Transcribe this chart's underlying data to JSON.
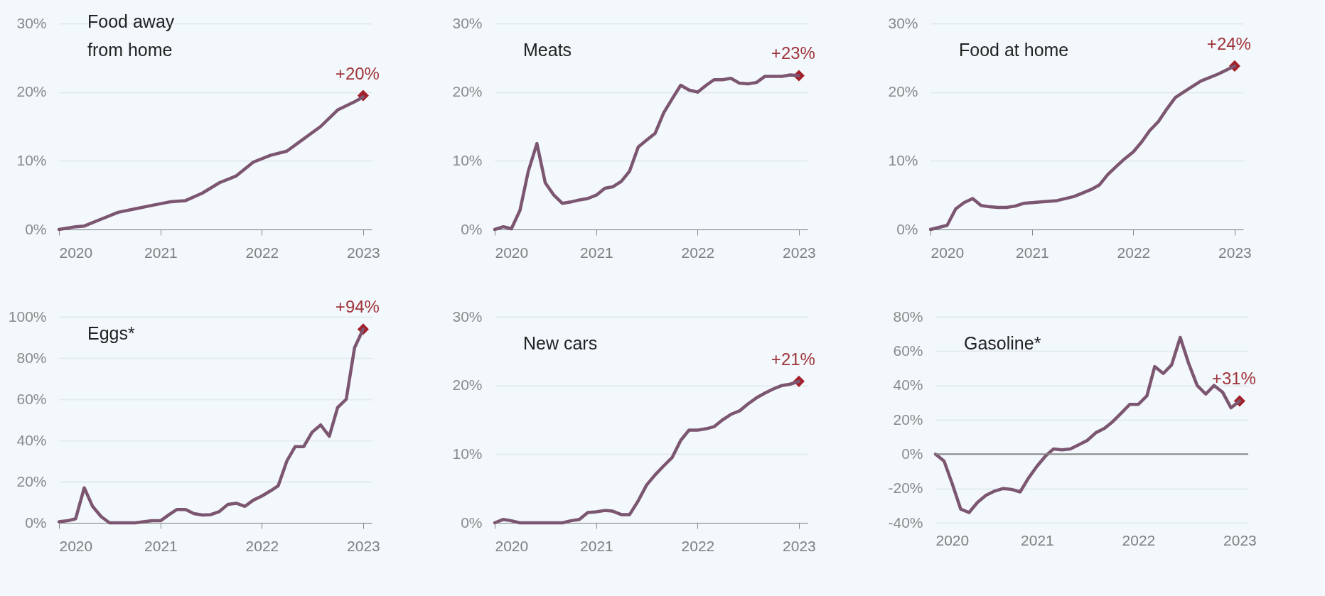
{
  "chart_data": [
    {
      "type": "line",
      "title": "Food away\nfrom home",
      "xlim": [
        "2020-01",
        "2023-02"
      ],
      "xticks": [
        "2020",
        "2021",
        "2022",
        "2023"
      ],
      "ylim": [
        0,
        30
      ],
      "yticks": [
        {
          "value": 0,
          "label": "0%"
        },
        {
          "value": 10,
          "label": "10%"
        },
        {
          "value": 20,
          "label": "20%"
        },
        {
          "value": 30,
          "label": "30%"
        }
      ],
      "grid": "y",
      "annotations": [
        {
          "text": "+20%",
          "x": "2023-01",
          "y": 19.5
        }
      ],
      "series": [
        {
          "color": "#7c5670",
          "x": [
            "2020-01",
            "2020-03",
            "2020-04",
            "2020-06",
            "2020-08",
            "2020-10",
            "2020-12",
            "2021-02",
            "2021-04",
            "2021-06",
            "2021-08",
            "2021-10",
            "2021-12",
            "2022-02",
            "2022-04",
            "2022-06",
            "2022-08",
            "2022-10",
            "2022-12",
            "2023-01"
          ],
          "values": [
            0,
            0.4,
            0.5,
            1.5,
            2.5,
            3.0,
            3.5,
            4.0,
            4.2,
            5.3,
            6.8,
            7.8,
            9.8,
            10.8,
            11.4,
            13.2,
            15.0,
            17.4,
            18.6,
            19.3
          ]
        }
      ]
    },
    {
      "type": "line",
      "title": "Meats",
      "xlim": [
        "2020-01",
        "2023-02"
      ],
      "xticks": [
        "2020",
        "2021",
        "2022",
        "2023"
      ],
      "ylim": [
        0,
        30
      ],
      "yticks": [
        {
          "value": 0,
          "label": "0%"
        },
        {
          "value": 10,
          "label": "10%"
        },
        {
          "value": 20,
          "label": "20%"
        },
        {
          "value": 30,
          "label": "30%"
        }
      ],
      "grid": "y",
      "annotations": [
        {
          "text": "+23%",
          "x": "2023-01",
          "y": 22.4
        }
      ],
      "series": [
        {
          "color": "#7c5670",
          "x": [
            "2020-01",
            "2020-02",
            "2020-03",
            "2020-04",
            "2020-05",
            "2020-06",
            "2020-07",
            "2020-08",
            "2020-09",
            "2020-10",
            "2020-11",
            "2020-12",
            "2021-01",
            "2021-02",
            "2021-03",
            "2021-04",
            "2021-05",
            "2021-06",
            "2021-07",
            "2021-08",
            "2021-09",
            "2021-10",
            "2021-11",
            "2021-12",
            "2022-01",
            "2022-02",
            "2022-03",
            "2022-04",
            "2022-05",
            "2022-06",
            "2022-07",
            "2022-08",
            "2022-09",
            "2022-10",
            "2022-11",
            "2022-12",
            "2023-01"
          ],
          "values": [
            0,
            0.4,
            0.1,
            2.8,
            8.5,
            12.5,
            6.8,
            5,
            3.8,
            4,
            4.3,
            4.5,
            5,
            6,
            6.2,
            7,
            8.5,
            12,
            13,
            14,
            17,
            19,
            21,
            20.3,
            20,
            21,
            21.8,
            21.8,
            22,
            21.3,
            21.2,
            21.4,
            22.3,
            22.3,
            22.3,
            22.5,
            22.4
          ]
        }
      ]
    },
    {
      "type": "line",
      "title": "Food at home",
      "xlim": [
        "2020-01",
        "2023-02"
      ],
      "xticks": [
        "2020",
        "2021",
        "2022",
        "2023"
      ],
      "ylim": [
        0,
        30
      ],
      "yticks": [
        {
          "value": 0,
          "label": "0%"
        },
        {
          "value": 10,
          "label": "10%"
        },
        {
          "value": 20,
          "label": "20%"
        },
        {
          "value": 30,
          "label": "30%"
        }
      ],
      "grid": "y",
      "annotations": [
        {
          "text": "+24%",
          "x": "2023-01",
          "y": 23.8
        }
      ],
      "series": [
        {
          "color": "#7c5670",
          "x": [
            "2020-01",
            "2020-03",
            "2020-04",
            "2020-05",
            "2020-06",
            "2020-07",
            "2020-08",
            "2020-09",
            "2020-10",
            "2020-11",
            "2020-12",
            "2021-02",
            "2021-04",
            "2021-06",
            "2021-08",
            "2021-09",
            "2021-10",
            "2021-11",
            "2021-12",
            "2022-01",
            "2022-02",
            "2022-03",
            "2022-04",
            "2022-05",
            "2022-06",
            "2022-07",
            "2022-09",
            "2022-11",
            "2023-01"
          ],
          "values": [
            0,
            0.6,
            3,
            3.9,
            4.5,
            3.5,
            3.3,
            3.2,
            3.2,
            3.4,
            3.8,
            4,
            4.2,
            4.8,
            5.8,
            6.5,
            8,
            9.2,
            10.3,
            11.3,
            12.8,
            14.4,
            15.7,
            17.5,
            19.2,
            20,
            21.6,
            22.6,
            23.8
          ]
        }
      ]
    },
    {
      "type": "line",
      "title": "Eggs*",
      "xlim": [
        "2020-01",
        "2023-02"
      ],
      "xticks": [
        "2020",
        "2021",
        "2022",
        "2023"
      ],
      "ylim": [
        0,
        100
      ],
      "yticks": [
        {
          "value": 0,
          "label": "0%"
        },
        {
          "value": 20,
          "label": "20%"
        },
        {
          "value": 40,
          "label": "40%"
        },
        {
          "value": 60,
          "label": "60%"
        },
        {
          "value": 80,
          "label": "80%"
        },
        {
          "value": 100,
          "label": "100%"
        }
      ],
      "grid": "y",
      "annotations": [
        {
          "text": "+94%",
          "x": "2023-01",
          "y": 94
        }
      ],
      "series": [
        {
          "color": "#7c5670",
          "x": [
            "2020-01",
            "2020-02",
            "2020-03",
            "2020-04",
            "2020-05",
            "2020-06",
            "2020-07",
            "2020-09",
            "2020-10",
            "2020-11",
            "2020-12",
            "2021-01",
            "2021-02",
            "2021-03",
            "2021-04",
            "2021-05",
            "2021-06",
            "2021-07",
            "2021-08",
            "2021-09",
            "2021-10",
            "2021-11",
            "2021-12",
            "2022-01",
            "2022-02",
            "2022-03",
            "2022-04",
            "2022-05",
            "2022-06",
            "2022-07",
            "2022-08",
            "2022-09",
            "2022-10",
            "2022-11",
            "2022-12",
            "2023-01"
          ],
          "values": [
            0.5,
            1,
            2,
            17,
            8,
            3,
            0,
            0,
            0,
            0.5,
            1,
            1,
            4,
            6.5,
            6.5,
            4.5,
            3.8,
            4,
            5.5,
            9,
            9.5,
            8,
            11,
            13,
            15.5,
            18,
            30,
            37,
            37,
            44,
            47.5,
            42,
            56,
            60,
            85,
            94
          ]
        }
      ]
    },
    {
      "type": "line",
      "title": "New cars",
      "xlim": [
        "2020-01",
        "2023-02"
      ],
      "xticks": [
        "2020",
        "2021",
        "2022",
        "2023"
      ],
      "ylim": [
        0,
        30
      ],
      "yticks": [
        {
          "value": 0,
          "label": "0%"
        },
        {
          "value": 10,
          "label": "10%"
        },
        {
          "value": 20,
          "label": "20%"
        },
        {
          "value": 30,
          "label": "30%"
        }
      ],
      "grid": "y",
      "annotations": [
        {
          "text": "+21%",
          "x": "2023-01",
          "y": 20.6
        }
      ],
      "series": [
        {
          "color": "#7c5670",
          "x": [
            "2020-01",
            "2020-02",
            "2020-03",
            "2020-04",
            "2020-06",
            "2020-08",
            "2020-09",
            "2020-10",
            "2020-11",
            "2020-12",
            "2021-01",
            "2021-02",
            "2021-03",
            "2021-04",
            "2021-05",
            "2021-06",
            "2021-07",
            "2021-08",
            "2021-09",
            "2021-10",
            "2021-11",
            "2021-12",
            "2022-01",
            "2022-02",
            "2022-03",
            "2022-04",
            "2022-05",
            "2022-06",
            "2022-07",
            "2022-08",
            "2022-09",
            "2022-10",
            "2022-11",
            "2022-12",
            "2023-01"
          ],
          "values": [
            0,
            0.5,
            0.3,
            0,
            0,
            0,
            0,
            0.3,
            0.5,
            1.5,
            1.6,
            1.8,
            1.7,
            1.2,
            1.2,
            3.2,
            5.5,
            7,
            8.3,
            9.5,
            12,
            13.5,
            13.5,
            13.7,
            14,
            15,
            15.8,
            16.3,
            17.3,
            18.2,
            18.9,
            19.5,
            20,
            20.2,
            20.6
          ]
        }
      ]
    },
    {
      "type": "line",
      "title": "Gasoline*",
      "xlim": [
        "2020-01",
        "2023-02"
      ],
      "xticks": [
        "2020",
        "2021",
        "2022",
        "2023"
      ],
      "ylim": [
        -40,
        80
      ],
      "yticks": [
        {
          "value": -40,
          "label": "-40%"
        },
        {
          "value": -20,
          "label": "-20%"
        },
        {
          "value": 0,
          "label": "0%"
        },
        {
          "value": 20,
          "label": "20%"
        },
        {
          "value": 40,
          "label": "40%"
        },
        {
          "value": 60,
          "label": "60%"
        },
        {
          "value": 80,
          "label": "80%"
        }
      ],
      "grid": "y",
      "ref_lines": [
        {
          "axis": "y",
          "value": 0,
          "color": "#888888"
        }
      ],
      "annotations": [
        {
          "text": "+31%",
          "x": "2023-01",
          "y": 31
        }
      ],
      "series": [
        {
          "color": "#7c5670",
          "x": [
            "2020-01",
            "2020-02",
            "2020-03",
            "2020-04",
            "2020-05",
            "2020-06",
            "2020-07",
            "2020-08",
            "2020-09",
            "2020-10",
            "2020-11",
            "2020-12",
            "2021-01",
            "2021-02",
            "2021-03",
            "2021-04",
            "2021-05",
            "2021-06",
            "2021-07",
            "2021-08",
            "2021-09",
            "2021-10",
            "2021-11",
            "2021-12",
            "2022-01",
            "2022-02",
            "2022-03",
            "2022-04",
            "2022-05",
            "2022-06",
            "2022-07",
            "2022-08",
            "2022-09",
            "2022-10",
            "2022-11",
            "2022-12",
            "2023-01"
          ],
          "values": [
            0,
            -4,
            -17,
            -32,
            -34,
            -28,
            -24,
            -21.5,
            -20,
            -20.5,
            -22,
            -14,
            -7,
            -1,
            3,
            2.5,
            3,
            5.5,
            8,
            12.5,
            15,
            19,
            24,
            29,
            29,
            34,
            51,
            47,
            52,
            68,
            53,
            40,
            35,
            40,
            36,
            27,
            31
          ]
        }
      ]
    }
  ]
}
